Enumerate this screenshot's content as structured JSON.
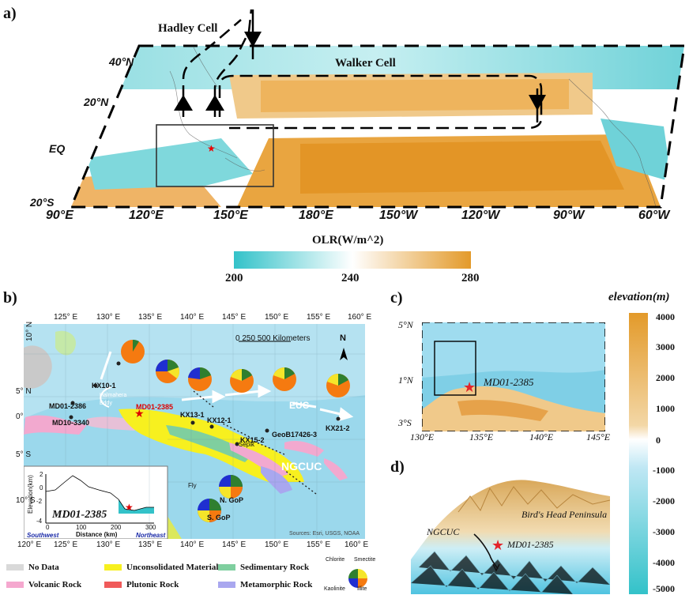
{
  "panel_a": {
    "label": "a)",
    "hadley_label": "Hadley Cell",
    "walker_label": "Walker Cell",
    "lat_ticks": [
      "40°N",
      "20°N",
      "EQ",
      "20°S"
    ],
    "lon_ticks": [
      "90°E",
      "120°E",
      "150°E",
      "180°E",
      "150°W",
      "120°W",
      "90°W",
      "60°W"
    ],
    "colorbar_title": "OLR(W/m^2)",
    "colorbar_ticks": [
      "200",
      "240",
      "280"
    ],
    "colors": {
      "low": "#33c2c9",
      "mid": "#ffffff",
      "high": "#e39a2a"
    }
  },
  "panel_b": {
    "label": "b)",
    "top_lon_ticks": [
      "125° E",
      "130° E",
      "135° E",
      "140° E",
      "145° E",
      "150° E",
      "155° E",
      "160° E"
    ],
    "bottom_lon_ticks": [
      "120° E",
      "125° E",
      "130° E",
      "135° E",
      "140° E",
      "145° E",
      "150° E",
      "155° E",
      "160° E"
    ],
    "lat_ticks": [
      "10° N",
      "5° N",
      "0°",
      "5° S",
      "10° S"
    ],
    "scale_label": "0   250   500 Kilometers",
    "north": "N",
    "sites": [
      "KX10-1",
      "MD01-2386",
      "MD10-3340",
      "MD01-2385",
      "KX13-1",
      "KX12-1",
      "KX15-2",
      "GeoB17426-3",
      "KX21-2"
    ],
    "rivers": [
      "Sepik",
      "Fly"
    ],
    "regions": [
      "N. GoP",
      "S. GoP"
    ],
    "currents": [
      "EUC",
      "NGCUC"
    ],
    "eddy": "Halmahera Eddy",
    "sources": "Sources: Esri, USGS, NOAA",
    "inset": {
      "ylabel": "Elevation(km)",
      "yticks": [
        "2",
        "0",
        "-2",
        "-4"
      ],
      "xticks": [
        "0",
        "100",
        "200",
        "300"
      ],
      "xlabel": "Distance (km)",
      "site": "MD01-2385",
      "left": "Southwest",
      "right": "Northeast"
    },
    "pie_colors": {
      "chlorite": "#2f7f2f",
      "smectite": "#f5e52a",
      "kaolinite": "#1f2fd0",
      "illite": "#f57a10"
    }
  },
  "legend": {
    "items": [
      {
        "label": "No Data",
        "color": "#d9d9d9"
      },
      {
        "label": "Unconsolidated Material",
        "color": "#f7f01f"
      },
      {
        "label": "Sedimentary Rock",
        "color": "#7fcf9f"
      },
      {
        "label": "Volcanic Rock",
        "color": "#f5a8cf"
      },
      {
        "label": "Plutonic Rock",
        "color": "#f05a5a"
      },
      {
        "label": "Metamorphic Rock",
        "color": "#a9a7ef"
      }
    ],
    "pie_labels": [
      "Chlorite",
      "Smectite",
      "Kaolinite",
      "Illite"
    ]
  },
  "panel_c": {
    "label": "c)",
    "lat_ticks": [
      "5°N",
      "1°N",
      "3°S"
    ],
    "lon_ticks": [
      "130°E",
      "135°E",
      "140°E",
      "145°E"
    ],
    "site": "MD01-2385"
  },
  "panel_d": {
    "label": "d)",
    "current": "NGCUC",
    "peninsula": "Bird's Head Peninsula",
    "site": "MD01-2385"
  },
  "elevation_bar": {
    "title": "elevation(m)",
    "ticks": [
      "4000",
      "3000",
      "2000",
      "1000",
      "0",
      "-1000",
      "-2000",
      "-3000",
      "-4000",
      "-5000"
    ]
  }
}
